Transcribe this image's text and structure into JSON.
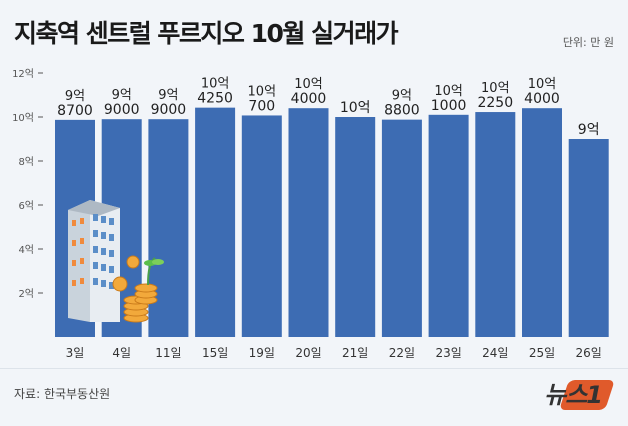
{
  "title": "지축역 센트럴 푸르지오 10월 실거래가",
  "unit_label": "단위: 만 원",
  "source": "자료: 한국부동산원",
  "logo": "뉴스1",
  "colors": {
    "bar": "#3d6cb3",
    "background": "#f2f5f9",
    "logo_accent": "#e05a2b"
  },
  "chart_data": {
    "type": "bar",
    "categories": [
      "3일",
      "4일",
      "11일",
      "15일",
      "19일",
      "20일",
      "21일",
      "22일",
      "23일",
      "24일",
      "25일",
      "26일"
    ],
    "values": [
      98700,
      99000,
      99000,
      104250,
      100700,
      104000,
      100000,
      98800,
      101000,
      102250,
      104000,
      90000
    ],
    "data_labels": [
      [
        "9억",
        "8700"
      ],
      [
        "9억",
        "9000"
      ],
      [
        "9억",
        "9000"
      ],
      [
        "10억",
        "4250"
      ],
      [
        "10억",
        "700"
      ],
      [
        "10억",
        "4000"
      ],
      [
        "10억",
        ""
      ],
      [
        "9억",
        "8800"
      ],
      [
        "10억",
        "1000"
      ],
      [
        "10억",
        "2250"
      ],
      [
        "10억",
        "4000"
      ],
      [
        "9억",
        ""
      ]
    ],
    "y_ticks": [
      {
        "value": 20000,
        "label": "2억"
      },
      {
        "value": 40000,
        "label": "4억"
      },
      {
        "value": 60000,
        "label": "6억"
      },
      {
        "value": 80000,
        "label": "8억"
      },
      {
        "value": 100000,
        "label": "10억"
      },
      {
        "value": 120000,
        "label": "12억"
      }
    ],
    "ylim": [
      0,
      120000
    ],
    "grid": false
  }
}
